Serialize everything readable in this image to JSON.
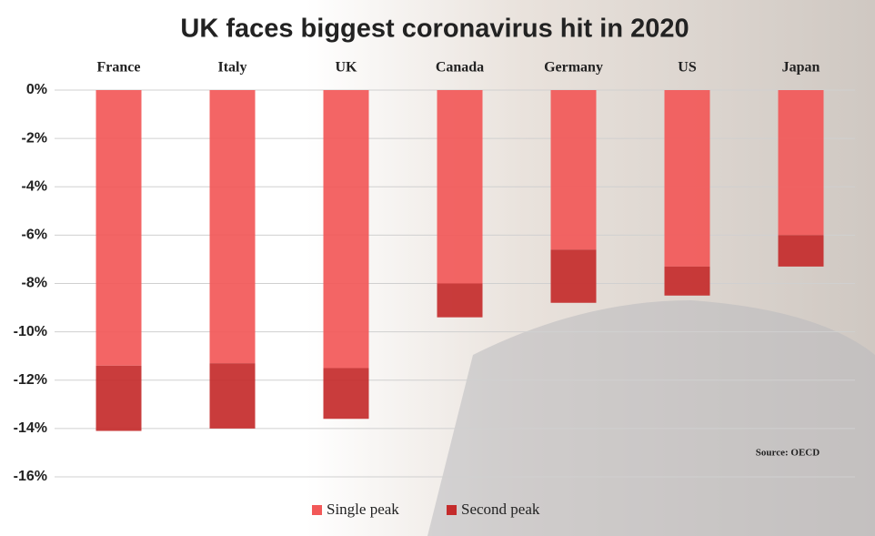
{
  "chart_data": {
    "type": "stacked_bar",
    "title": "UK faces biggest coronavirus hit in 2020",
    "categories": [
      "France",
      "Italy",
      "UK",
      "Canada",
      "Germany",
      "US",
      "Japan"
    ],
    "series": [
      {
        "name": "Single peak",
        "color": "#f25858",
        "values": [
          -11.4,
          -11.3,
          -11.5,
          -8.0,
          -6.6,
          -7.3,
          -6.0
        ]
      },
      {
        "name": "Second peak",
        "color": "#c42b2b",
        "values": [
          -2.7,
          -2.7,
          -2.1,
          -1.4,
          -2.2,
          -1.2,
          -1.3
        ]
      }
    ],
    "ylim": [
      -16,
      0
    ],
    "yticks": [
      {
        "value": 0,
        "label": "0%"
      },
      {
        "value": -2,
        "label": "-2%"
      },
      {
        "value": -4,
        "label": "-4%"
      },
      {
        "value": -6,
        "label": "-6%"
      },
      {
        "value": -8,
        "label": "-8%"
      },
      {
        "value": -10,
        "label": "-10%"
      },
      {
        "value": -12,
        "label": "-12%"
      },
      {
        "value": -14,
        "label": "-14%"
      },
      {
        "value": -16,
        "label": "-16%"
      }
    ],
    "grid": true,
    "legend": "bottom",
    "source": "Source: OECD"
  }
}
